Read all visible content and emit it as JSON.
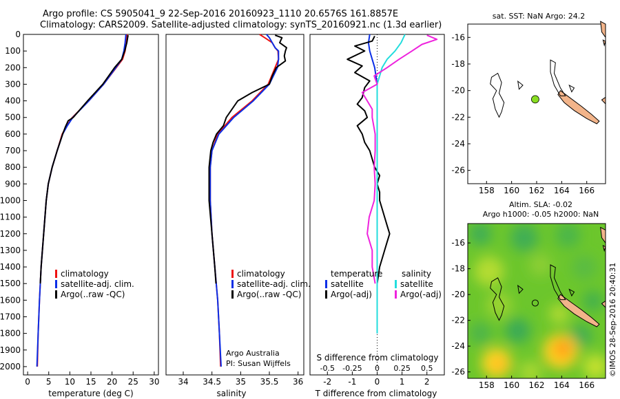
{
  "header": {
    "title_line1": "Argo profile: CS 5905041_9 22-Sep-2016 20160923_1110 20.6576S 161.8857E",
    "title_line2": "Climatology: CARS2009. Satellite-adjusted climatology: synTS_20160921.nc (1.3d earlier)"
  },
  "credit": "©IMOS 28-Sep-2016 20:40:31",
  "colors": {
    "climatology": "#ee1111",
    "satellite": "#0a2ee6",
    "argo": "#000000",
    "sal_satellite": "#22dddd",
    "sal_argo": "#ee22dd",
    "land": "#f2b48a",
    "float": "#88dd22"
  },
  "chart_data": [
    {
      "type": "line",
      "panel": "temperature",
      "xlabel": "temperature (deg C)",
      "xlim": [
        -1,
        31
      ],
      "xticks": [
        0,
        5,
        10,
        15,
        20,
        25,
        30
      ],
      "ylim": [
        0,
        2050
      ],
      "yticks": [
        0,
        100,
        200,
        300,
        400,
        500,
        600,
        700,
        800,
        900,
        1000,
        1100,
        1200,
        1300,
        1400,
        1500,
        1600,
        1700,
        1800,
        1900,
        2000
      ],
      "legend": [
        "climatology",
        "satellite-adj. clim.",
        "Argo(..raw -QC)"
      ],
      "series": [
        {
          "name": "climatology",
          "depth": [
            0,
            50,
            100,
            150,
            200,
            300,
            400,
            500,
            550,
            600,
            700,
            800,
            900,
            1000,
            1200,
            1400,
            1600,
            1800,
            2000
          ],
          "values": [
            23.6,
            23.4,
            23.1,
            22.5,
            21.0,
            18.0,
            14.5,
            10.6,
            9.3,
            8.2,
            7.0,
            5.8,
            4.9,
            4.4,
            3.8,
            3.2,
            2.8,
            2.5,
            2.3
          ]
        },
        {
          "name": "satellite-adj. clim.",
          "depth": [
            0,
            50,
            100,
            150,
            200,
            300,
            400,
            500,
            550,
            600,
            700,
            800,
            900,
            1000,
            1200,
            1400,
            1600,
            1800,
            2000
          ],
          "values": [
            23.3,
            23.1,
            22.8,
            22.3,
            20.9,
            18.0,
            14.5,
            10.7,
            9.4,
            8.3,
            7.0,
            5.8,
            4.9,
            4.4,
            3.8,
            3.2,
            2.8,
            2.5,
            2.2
          ]
        },
        {
          "name": "Argo(..raw -QC)",
          "depth": [
            5,
            50,
            100,
            150,
            200,
            300,
            400,
            500,
            520,
            560,
            600,
            700,
            800,
            900,
            1000,
            1200,
            1400,
            1500
          ],
          "values": [
            23.8,
            23.5,
            23.0,
            22.3,
            20.6,
            17.8,
            14.2,
            10.8,
            9.6,
            8.9,
            8.3,
            7.0,
            5.8,
            4.9,
            4.4,
            3.8,
            3.2,
            3.0
          ]
        }
      ]
    },
    {
      "type": "line",
      "panel": "salinity",
      "xlabel": "salinity",
      "xlim": [
        33.7,
        36.1
      ],
      "xticks": [
        34,
        34.5,
        35,
        35.5,
        36
      ],
      "xticklabels": [
        "34",
        "34.5",
        "35",
        "35.5",
        "36"
      ],
      "ylim": [
        0,
        2050
      ],
      "legend": [
        "climatology",
        "satellite-adj. clim.",
        "Argo(..raw -QC)"
      ],
      "annotation": [
        "Argo Australia",
        "PI: Susan Wijffels"
      ],
      "series": [
        {
          "name": "climatology",
          "depth": [
            0,
            20,
            50,
            80,
            100,
            150,
            200,
            300,
            400,
            500,
            600,
            700,
            800,
            900,
            1000,
            1200,
            1400,
            1600,
            1800,
            2000
          ],
          "values": [
            35.33,
            35.42,
            35.55,
            35.6,
            35.65,
            35.66,
            35.6,
            35.48,
            35.2,
            34.85,
            34.6,
            34.5,
            34.47,
            34.47,
            34.47,
            34.5,
            34.55,
            34.6,
            34.63,
            34.65
          ]
        },
        {
          "name": "satellite-adj. clim.",
          "depth": [
            0,
            20,
            50,
            80,
            100,
            150,
            200,
            300,
            400,
            500,
            600,
            700,
            800,
            900,
            1000,
            1200,
            1400,
            1600,
            1800,
            2000
          ],
          "values": [
            35.45,
            35.5,
            35.55,
            35.6,
            35.66,
            35.66,
            35.64,
            35.5,
            35.22,
            34.88,
            34.62,
            34.5,
            34.47,
            34.47,
            34.47,
            34.5,
            34.55,
            34.6,
            34.63,
            34.66
          ]
        },
        {
          "name": "Argo(..raw -QC)",
          "depth": [
            5,
            20,
            50,
            80,
            100,
            130,
            160,
            200,
            250,
            300,
            350,
            400,
            450,
            500,
            550,
            600,
            650,
            700,
            800,
            900,
            1000,
            1200,
            1400,
            1500
          ],
          "values": [
            35.6,
            35.72,
            35.68,
            35.8,
            35.78,
            35.76,
            35.78,
            35.62,
            35.55,
            35.5,
            35.2,
            34.95,
            34.85,
            34.75,
            34.7,
            34.58,
            34.52,
            34.48,
            34.45,
            34.45,
            34.45,
            34.5,
            34.55,
            34.57
          ]
        }
      ]
    },
    {
      "type": "line",
      "panel": "difference",
      "xlabel": "T difference from climatology",
      "xlabel_top": "S difference from climatology",
      "xlim": [
        -2.7,
        2.7
      ],
      "xticks": [
        -2,
        -1,
        0,
        1,
        2
      ],
      "xticks_s": [
        -0.5,
        -0.25,
        0,
        0.25,
        0.5
      ],
      "xticklabels_s": [
        "-0.5",
        "-0.25",
        "0",
        "0.25",
        "0.5"
      ],
      "ylim": [
        0,
        2050
      ],
      "legend_temperature_title": "temperature",
      "legend_salinity_title": "salinity",
      "legend_items": [
        "satellite",
        "Argo(-adj)"
      ],
      "series": [
        {
          "name": "temperature satellite",
          "axis": "T",
          "depth": [
            0,
            50,
            100,
            150,
            200,
            300,
            500,
            700,
            900,
            1100,
            1300,
            1500,
            1700,
            1800
          ],
          "values": [
            -0.3,
            -0.35,
            -0.3,
            -0.2,
            -0.1,
            0,
            0,
            0,
            0,
            0,
            0,
            0,
            0,
            0
          ]
        },
        {
          "name": "temperature Argo(-adj)",
          "axis": "T",
          "depth": [
            10,
            40,
            70,
            100,
            150,
            190,
            230,
            280,
            320,
            380,
            420,
            460,
            500,
            550,
            600,
            650,
            700,
            750,
            800,
            850,
            900,
            950,
            1000,
            1050,
            1100,
            1150,
            1200,
            1250,
            1300,
            1350,
            1400,
            1450,
            1500
          ],
          "values": [
            -0.1,
            -0.2,
            -0.9,
            -0.5,
            -1.2,
            -0.6,
            -0.9,
            -0.3,
            -0.5,
            -0.6,
            -0.8,
            -0.5,
            -0.4,
            -0.8,
            -0.6,
            -0.5,
            -0.3,
            -0.2,
            -0.1,
            0.1,
            0,
            0.1,
            0.1,
            0.2,
            0.3,
            0.4,
            0.5,
            0.4,
            0.3,
            0.2,
            0.1,
            0.05,
            0
          ]
        },
        {
          "name": "salinity satellite",
          "axis": "S",
          "depth": [
            0,
            50,
            100,
            150,
            200,
            300,
            500,
            700,
            900,
            1100,
            1300,
            1500,
            1700,
            1800
          ],
          "values": [
            0.28,
            0.24,
            0.18,
            0.1,
            0.05,
            0.0,
            0.0,
            0.0,
            0.0,
            0.0,
            0.0,
            0.0,
            0.0,
            0.0
          ]
        },
        {
          "name": "salinity Argo(-adj)",
          "axis": "S",
          "depth": [
            5,
            30,
            60,
            100,
            150,
            200,
            250,
            300,
            350,
            400,
            450,
            500,
            600,
            700,
            800,
            900,
            1000,
            1100,
            1200,
            1300,
            1400,
            1500
          ],
          "values": [
            0.5,
            0.6,
            0.45,
            0.35,
            0.22,
            0.1,
            -0.03,
            0.0,
            -0.15,
            -0.1,
            -0.05,
            -0.05,
            -0.02,
            -0.02,
            -0.03,
            -0.02,
            -0.03,
            -0.08,
            -0.1,
            -0.05,
            -0.05,
            -0.02
          ]
        }
      ]
    },
    {
      "type": "map",
      "panel": "sst",
      "title": "sat. SST: NaN  Argo: 24.2",
      "xlim": [
        156.5,
        167.5
      ],
      "ylim": [
        -27,
        -15
      ],
      "xticks": [
        158,
        160,
        162,
        164,
        166
      ],
      "yticks": [
        -16,
        -18,
        -20,
        -22,
        -24,
        -26
      ],
      "argo_position": {
        "lon": 161.8857,
        "lat": -20.6576
      }
    },
    {
      "type": "heatmap",
      "panel": "sla",
      "title_line1": "Altim. SLA: -0.02",
      "title_line2": "Argo h1000: -0.05  h2000: NaN",
      "xlim": [
        156.5,
        167.5
      ],
      "ylim": [
        -26.5,
        -14.5
      ],
      "xticks": [
        158,
        160,
        162,
        164,
        166
      ],
      "yticks": [
        -16,
        -18,
        -20,
        -22,
        -24,
        -26
      ],
      "argo_position": {
        "lon": 161.8857,
        "lat": -20.6576
      }
    }
  ]
}
